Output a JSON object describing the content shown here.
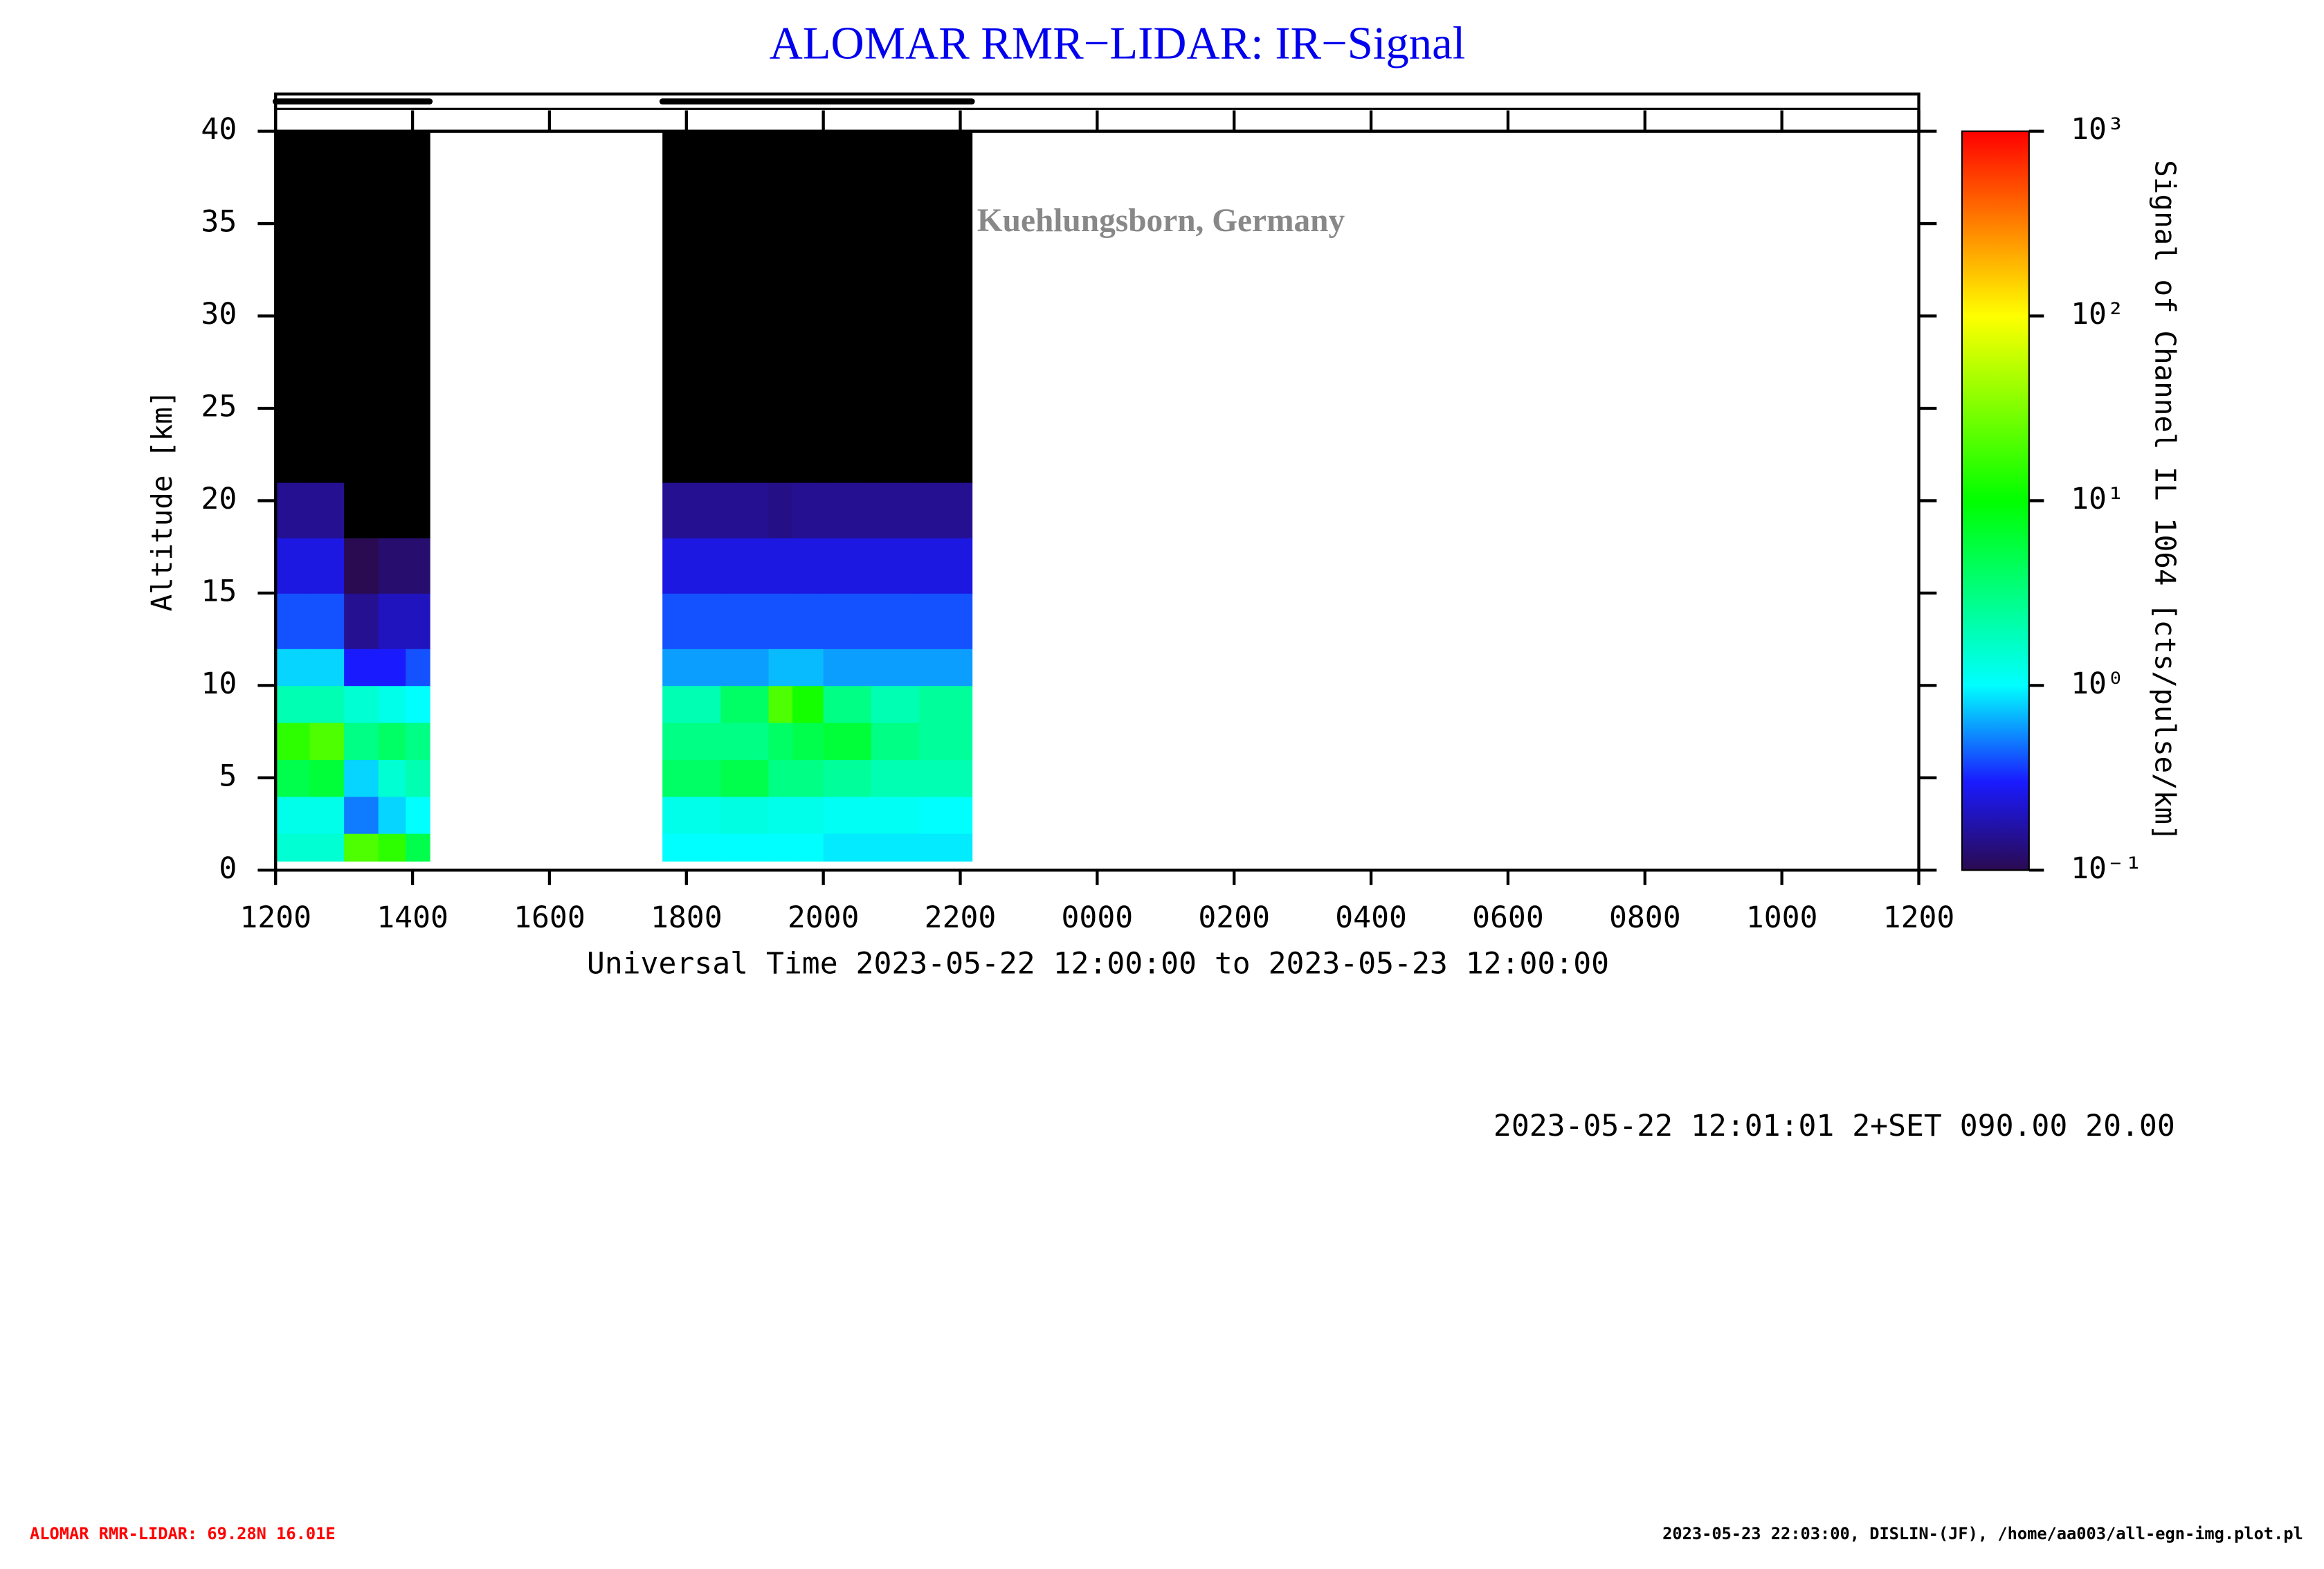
{
  "chart_data": {
    "type": "heatmap",
    "title": "ALOMAR RMR−LIDAR: IR−Signal",
    "watermark": "©IAP Kuehlungsborn, Germany",
    "xlabel": "Universal Time 2023-05-22 12:00:00 to 2023-05-23 12:00:00",
    "ylabel": "Altitude [km]",
    "colorbar_label": "Signal of Channel IL 1064 [cts/pulse/km]",
    "xlim": [
      0,
      24
    ],
    "xticks": [
      {
        "value": 0,
        "label": "1200"
      },
      {
        "value": 2,
        "label": "1400"
      },
      {
        "value": 4,
        "label": "1600"
      },
      {
        "value": 6,
        "label": "1800"
      },
      {
        "value": 8,
        "label": "2000"
      },
      {
        "value": 10,
        "label": "2200"
      },
      {
        "value": 12,
        "label": "0000"
      },
      {
        "value": 14,
        "label": "0200"
      },
      {
        "value": 16,
        "label": "0400"
      },
      {
        "value": 18,
        "label": "0600"
      },
      {
        "value": 20,
        "label": "0800"
      },
      {
        "value": 22,
        "label": "1000"
      },
      {
        "value": 24,
        "label": "1200"
      }
    ],
    "ylim": [
      0,
      40
    ],
    "yticks": [
      0,
      5,
      10,
      15,
      20,
      25,
      30,
      35,
      40
    ],
    "clim": [
      0.1,
      1000
    ],
    "log_color": true,
    "cticks": [
      {
        "value": 1000,
        "label": "10³"
      },
      {
        "value": 100,
        "label": "10²"
      },
      {
        "value": 10,
        "label": "10¹"
      },
      {
        "value": 1,
        "label": "10⁰"
      },
      {
        "value": 0.1,
        "label": "10⁻¹"
      }
    ],
    "colormap": [
      {
        "value": 0.1,
        "color": "#2a0a50"
      },
      {
        "value": 0.3,
        "color": "#1a1aff"
      },
      {
        "value": 1,
        "color": "#00ffff"
      },
      {
        "value": 10,
        "color": "#00ff00"
      },
      {
        "value": 100,
        "color": "#ffff00"
      },
      {
        "value": 1000,
        "color": "#ff0000"
      }
    ],
    "below_color": "#000000",
    "altitude_bins": [
      0.5,
      2,
      4,
      6,
      8,
      10,
      12,
      15,
      18,
      21,
      40
    ],
    "blocks": [
      {
        "time_bins": [
          0,
          0.5,
          1,
          1.5,
          1.9,
          2.25
        ],
        "values": [
          [
            1.5,
            1.2,
            5,
            15,
            2,
            0.8,
            0.4,
            0.25,
            0.15,
            0.05
          ],
          [
            1.5,
            1.2,
            6,
            20,
            2,
            0.8,
            0.4,
            0.25,
            0.15,
            0.05
          ],
          [
            20,
            0.5,
            0.8,
            3,
            1.5,
            0.3,
            0.15,
            0.1,
            0.08,
            0.05
          ],
          [
            15,
            0.8,
            1.5,
            4,
            1.2,
            0.3,
            0.2,
            0.12,
            0.08,
            0.05
          ],
          [
            5,
            1,
            2,
            3,
            1,
            0.4,
            0.2,
            0.12,
            0.08,
            0.05
          ]
        ]
      },
      {
        "time_bins": [
          5.65,
          6.5,
          7.2,
          7.55,
          8,
          8.7,
          9.4,
          10.17
        ],
        "values": [
          [
            1,
            1.2,
            4,
            3,
            2,
            0.6,
            0.4,
            0.25,
            0.15,
            0.05
          ],
          [
            1,
            1.3,
            5,
            3,
            4,
            0.6,
            0.4,
            0.25,
            0.15,
            0.05
          ],
          [
            1,
            1.2,
            3,
            4,
            20,
            0.7,
            0.4,
            0.25,
            0.14,
            0.05
          ],
          [
            1,
            1.2,
            3,
            5,
            12,
            0.7,
            0.4,
            0.25,
            0.15,
            0.05
          ],
          [
            0.9,
            1.1,
            2.5,
            6,
            3,
            0.6,
            0.4,
            0.25,
            0.15,
            0.05
          ],
          [
            0.9,
            1.1,
            2,
            3,
            2,
            0.6,
            0.4,
            0.25,
            0.15,
            0.05
          ],
          [
            0.9,
            1,
            2,
            2.5,
            2.5,
            0.6,
            0.4,
            0.25,
            0.15,
            0.05
          ]
        ]
      }
    ],
    "settings_text": "2023-05-22 12:01:01 2+SET 090.00 20.00",
    "footer_left": "ALOMAR RMR-LIDAR: 69.28N 16.01E",
    "footer_right": "2023-05-23 22:03:00, DISLIN-(JF), /home/aa003/all-egn-img.plot.pl"
  }
}
